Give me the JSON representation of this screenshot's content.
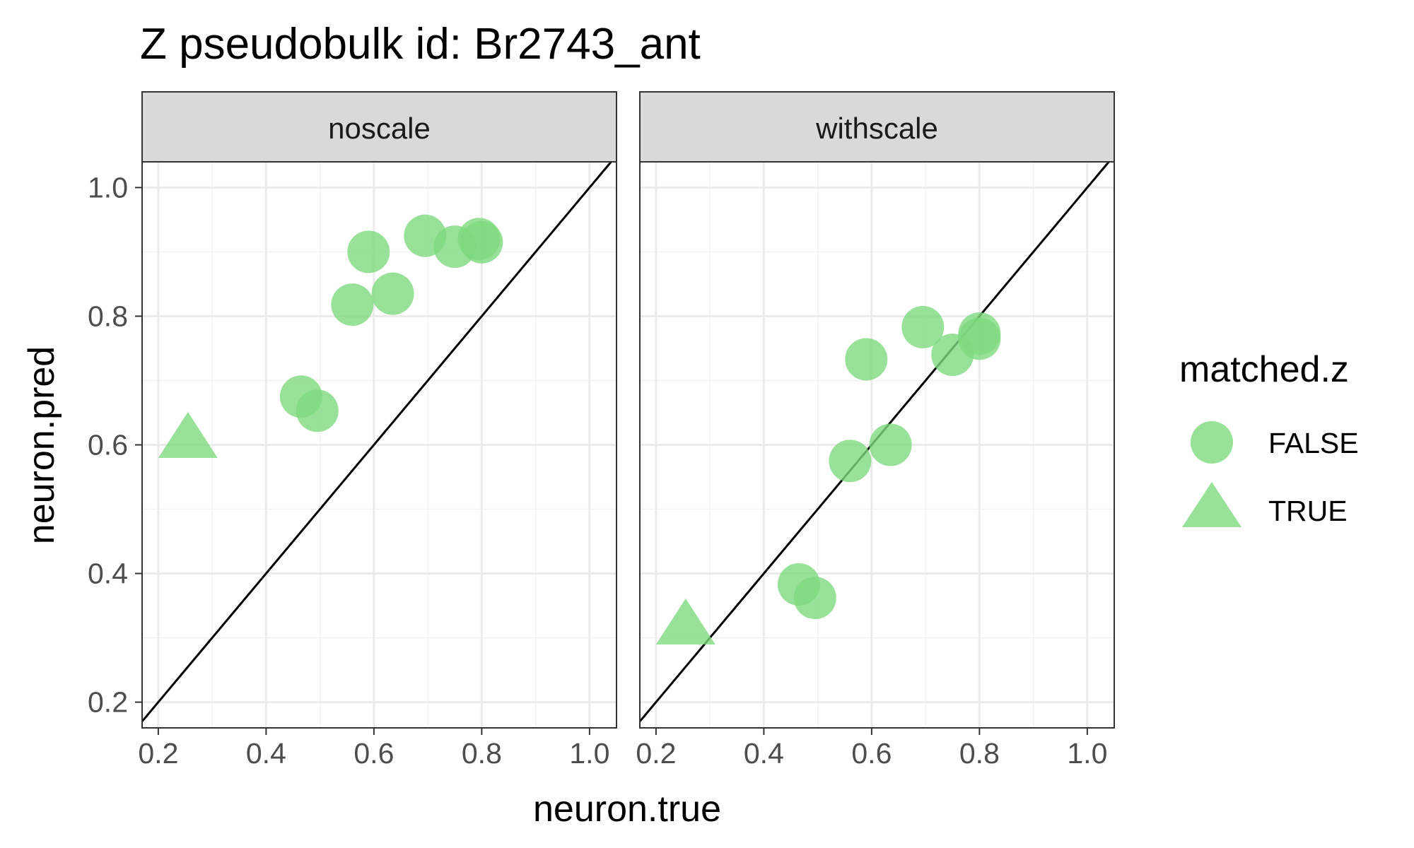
{
  "chart_data": {
    "type": "scatter",
    "title": "Z pseudobulk id: Br2743_ant",
    "xlabel": "neuron.true",
    "ylabel": "neuron.pred",
    "xlim": [
      0.17,
      1.05
    ],
    "ylim": [
      0.16,
      1.04
    ],
    "x_ticks": [
      "0.2",
      "0.4",
      "0.6",
      "0.8",
      "1.0"
    ],
    "y_ticks": [
      "0.2",
      "0.4",
      "0.6",
      "0.8",
      "1.0"
    ],
    "grid": true,
    "reference_line": "y = x",
    "point_color": "#7ed97e",
    "legend": {
      "title": "matched.z",
      "placement": "right",
      "entries": [
        {
          "label": "FALSE",
          "shape": "circle"
        },
        {
          "label": "TRUE",
          "shape": "triangle"
        }
      ]
    },
    "panels": [
      {
        "name": "noscale",
        "points": [
          {
            "x": 0.255,
            "y": 0.605,
            "matched": true
          },
          {
            "x": 0.465,
            "y": 0.675,
            "matched": false
          },
          {
            "x": 0.495,
            "y": 0.653,
            "matched": false
          },
          {
            "x": 0.56,
            "y": 0.818,
            "matched": false
          },
          {
            "x": 0.59,
            "y": 0.9,
            "matched": false
          },
          {
            "x": 0.635,
            "y": 0.835,
            "matched": false
          },
          {
            "x": 0.695,
            "y": 0.925,
            "matched": false
          },
          {
            "x": 0.75,
            "y": 0.908,
            "matched": false
          },
          {
            "x": 0.795,
            "y": 0.92,
            "matched": false
          },
          {
            "x": 0.8,
            "y": 0.915,
            "matched": false
          }
        ]
      },
      {
        "name": "withscale",
        "points": [
          {
            "x": 0.255,
            "y": 0.315,
            "matched": true
          },
          {
            "x": 0.465,
            "y": 0.383,
            "matched": false
          },
          {
            "x": 0.495,
            "y": 0.362,
            "matched": false
          },
          {
            "x": 0.56,
            "y": 0.575,
            "matched": false
          },
          {
            "x": 0.59,
            "y": 0.733,
            "matched": false
          },
          {
            "x": 0.635,
            "y": 0.6,
            "matched": false
          },
          {
            "x": 0.695,
            "y": 0.783,
            "matched": false
          },
          {
            "x": 0.75,
            "y": 0.74,
            "matched": false
          },
          {
            "x": 0.8,
            "y": 0.765,
            "matched": false
          },
          {
            "x": 0.8,
            "y": 0.773,
            "matched": false
          }
        ]
      }
    ]
  }
}
